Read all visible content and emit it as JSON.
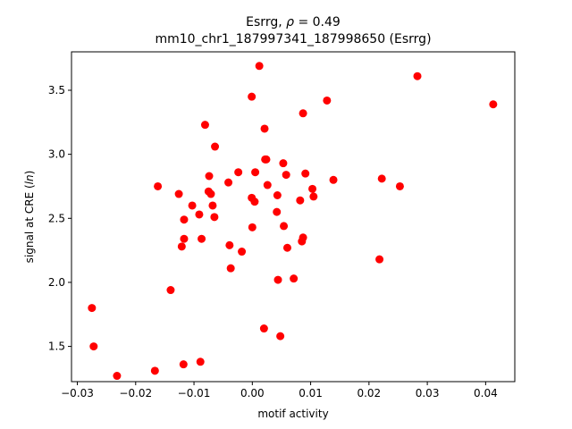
{
  "chart_data": {
    "type": "scatter",
    "title_line1_prefix": "Esrrg, ",
    "title_line1_rho": "ρ",
    "title_line1_suffix": " = 0.49",
    "title_line2": "mm10_chr1_187997341_187998650 (Esrrg)",
    "xlabel": "motif activity",
    "ylabel_prefix": "signal at CRE (",
    "ylabel_italic": "ln",
    "ylabel_suffix": ")",
    "xlim": [
      -0.031,
      0.045
    ],
    "ylim": [
      1.225,
      3.8
    ],
    "xticks": [
      -0.03,
      -0.02,
      -0.01,
      0.0,
      0.01,
      0.02,
      0.03,
      0.04
    ],
    "xtick_labels": [
      "−0.03",
      "−0.02",
      "−0.01",
      "0.00",
      "0.01",
      "0.02",
      "0.03",
      "0.04"
    ],
    "yticks": [
      1.5,
      2.0,
      2.5,
      3.0,
      3.5
    ],
    "ytick_labels": [
      "1.5",
      "2.0",
      "2.5",
      "3.0",
      "3.5"
    ],
    "grid": false,
    "marker_color": "#ff0000",
    "x": [
      0.0012,
      0.0283,
      -0.0001,
      0.0413,
      0.0128,
      0.0087,
      -0.0081,
      0.0021,
      -0.0064,
      0.0022,
      0.0053,
      0.0139,
      0.0024,
      -0.0074,
      -0.0024,
      0.0005,
      0.0058,
      0.0091,
      -0.0041,
      0.0026,
      -0.0162,
      0.0222,
      0.0253,
      -0.0075,
      0.0103,
      -0.0126,
      -0.0071,
      0.0043,
      0.0105,
      -0.0001,
      0.0004,
      0.0082,
      -0.0103,
      -0.0068,
      -0.0091,
      -0.0117,
      -0.0065,
      0.0042,
      0.0,
      0.0054,
      -0.0117,
      -0.0087,
      0.0087,
      -0.0121,
      0.0085,
      -0.0039,
      0.006,
      -0.0018,
      0.0218,
      -0.0037,
      0.0044,
      0.0071,
      -0.014,
      -0.0275,
      0.002,
      0.0048,
      -0.0272,
      -0.0089,
      -0.0118,
      -0.0167,
      -0.0232
    ],
    "y": [
      3.69,
      3.61,
      3.45,
      3.39,
      3.42,
      3.32,
      3.23,
      3.2,
      3.06,
      2.96,
      2.93,
      2.8,
      2.96,
      2.83,
      2.86,
      2.86,
      2.84,
      2.85,
      2.78,
      2.76,
      2.75,
      2.81,
      2.75,
      2.71,
      2.73,
      2.69,
      2.69,
      2.68,
      2.67,
      2.66,
      2.63,
      2.64,
      2.6,
      2.6,
      2.53,
      2.49,
      2.51,
      2.55,
      2.43,
      2.44,
      2.34,
      2.34,
      2.35,
      2.28,
      2.32,
      2.29,
      2.27,
      2.24,
      2.18,
      2.11,
      2.02,
      2.03,
      1.94,
      1.8,
      1.64,
      1.58,
      1.5,
      1.38,
      1.36,
      1.31,
      1.27
    ]
  }
}
